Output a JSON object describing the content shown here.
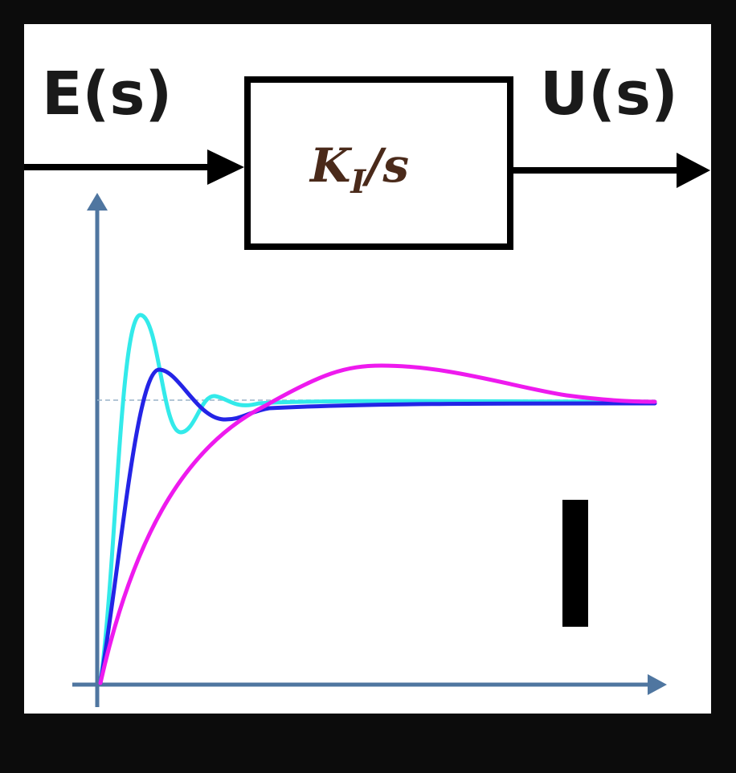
{
  "block": {
    "input_label": "E(s)",
    "output_label": "U(s)",
    "transfer_base": "K",
    "transfer_sub": "I",
    "transfer_rest": "/s"
  },
  "overlay_letter": "I",
  "plot": {
    "type": "line",
    "title": "",
    "xlabel": "",
    "ylabel": "",
    "axis_color": "#4f76a0",
    "reference_line": {
      "y": 1.0,
      "style": "dashed"
    },
    "series": [
      {
        "color": "#33eaea"
      },
      {
        "color": "#2424e6"
      },
      {
        "color": "#ee1aee"
      }
    ]
  }
}
